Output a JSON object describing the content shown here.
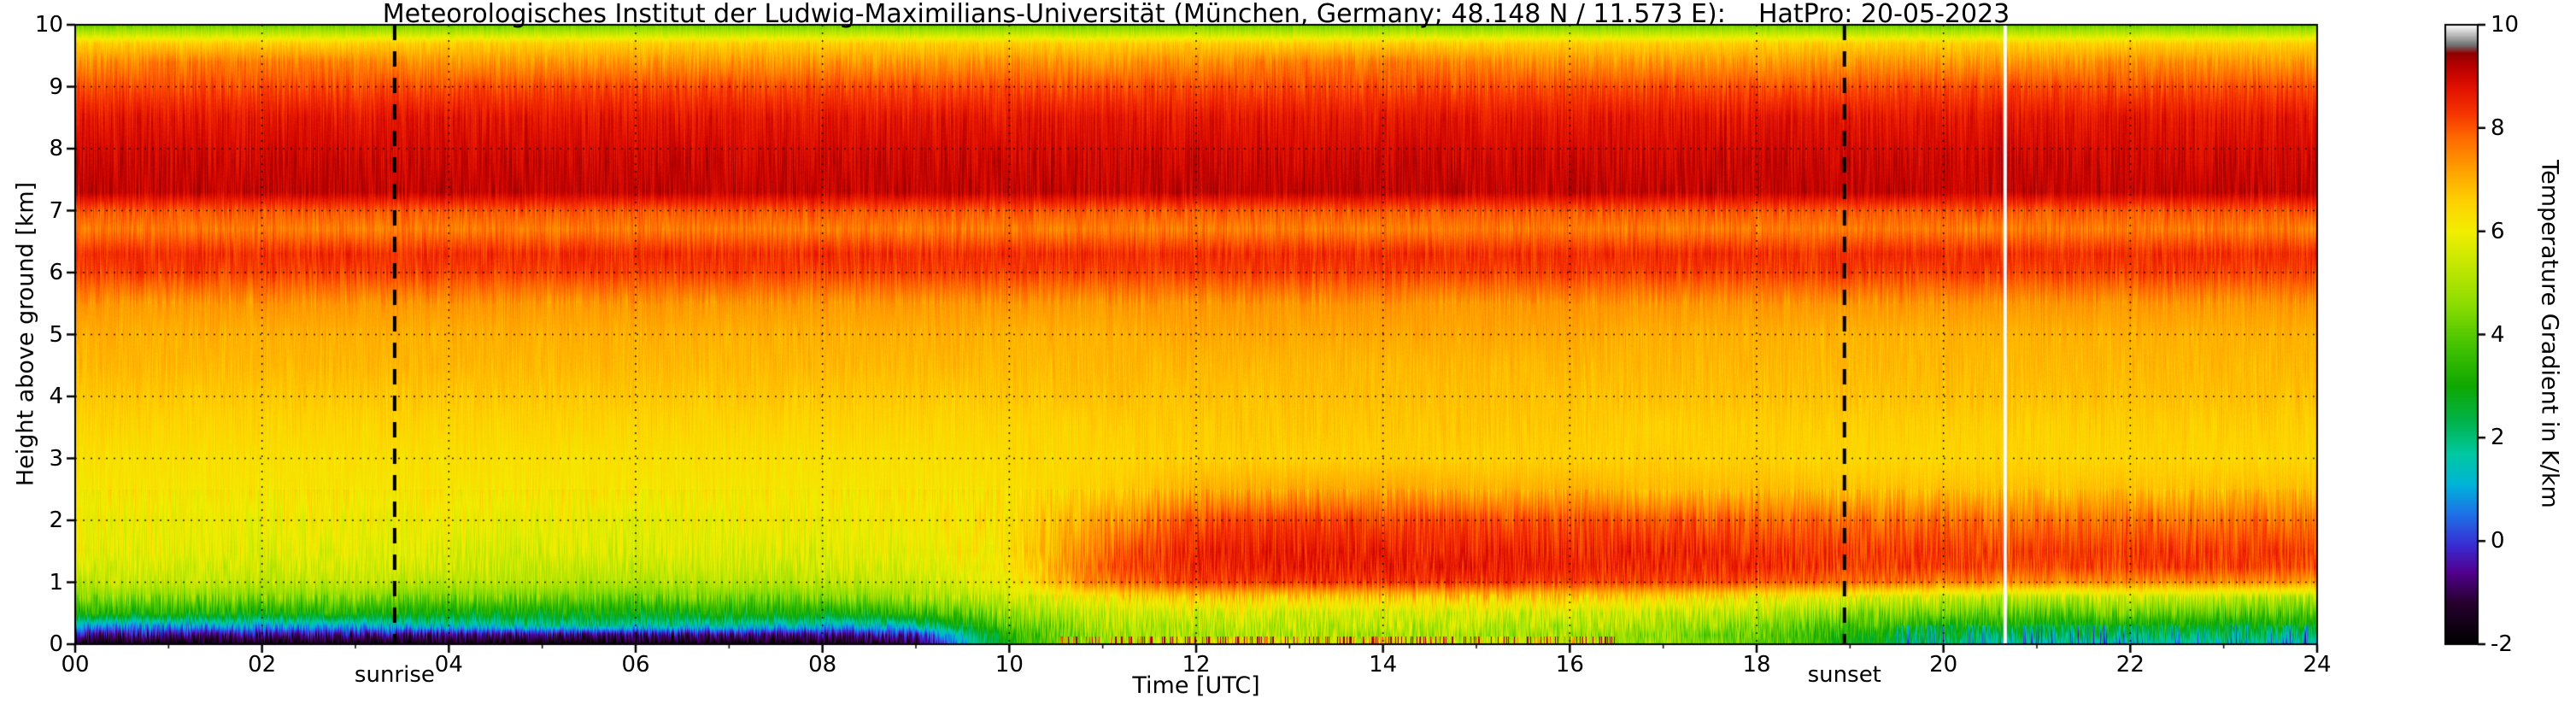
{
  "annotations": {
    "sunrise": {
      "label": "sunrise",
      "time_utc": 3.42
    },
    "sunset": {
      "label": "sunset",
      "time_utc": 18.94
    },
    "data_gap": {
      "time_utc": 20.66
    }
  },
  "chart_data": {
    "type": "heatmap",
    "title": "Meteorologisches Institut der Ludwig-Maximilians-Universität (München, Germany; 48.148 N / 11.573 E):    HatPro: 20-05-2023",
    "xlabel": "Time [UTC]",
    "ylabel": "Height above ground [km]",
    "colorbar_label": "Temperature Gradient in K/km",
    "x_range": [
      0,
      24
    ],
    "y_range": [
      0,
      10
    ],
    "value_range": [
      -2,
      10
    ],
    "grid": true,
    "legend_position": "right-colorbar",
    "x_ticks": [
      0,
      2,
      4,
      6,
      8,
      10,
      12,
      14,
      16,
      18,
      20,
      22,
      24
    ],
    "x_tick_labels": [
      "00",
      "02",
      "04",
      "06",
      "08",
      "10",
      "12",
      "14",
      "16",
      "18",
      "20",
      "22",
      "24"
    ],
    "x_minor_ticks": [
      1,
      3,
      5,
      7,
      9,
      11,
      13,
      15,
      17,
      19,
      21,
      23
    ],
    "y_ticks": [
      0,
      1,
      2,
      3,
      4,
      5,
      6,
      7,
      8,
      9,
      10
    ],
    "colorbar_ticks": [
      -2,
      0,
      2,
      4,
      6,
      8,
      10
    ],
    "colormap": [
      [
        -2.0,
        "#000000"
      ],
      [
        -1.2,
        "#26002e"
      ],
      [
        -0.6,
        "#52008f"
      ],
      [
        -0.1,
        "#3a2bd1"
      ],
      [
        0.5,
        "#1f6fe8"
      ],
      [
        1.1,
        "#00b4d8"
      ],
      [
        1.7,
        "#00c9a0"
      ],
      [
        2.3,
        "#00b34d"
      ],
      [
        3.0,
        "#0fa800"
      ],
      [
        3.8,
        "#45c300"
      ],
      [
        4.6,
        "#8edd00"
      ],
      [
        5.4,
        "#c8e800"
      ],
      [
        6.0,
        "#f2ee00"
      ],
      [
        6.6,
        "#ffd000"
      ],
      [
        7.2,
        "#ffa000"
      ],
      [
        7.8,
        "#ff6a00"
      ],
      [
        8.3,
        "#f63300"
      ],
      [
        8.8,
        "#e00f00"
      ],
      [
        9.2,
        "#b80000"
      ],
      [
        9.45,
        "#8f0000"
      ],
      [
        9.6,
        "#6e6e6e"
      ],
      [
        9.8,
        "#b8b8b8"
      ],
      [
        10.0,
        "#ffffff"
      ]
    ],
    "times": [
      0,
      1,
      2,
      3,
      4,
      5,
      6,
      7,
      8,
      9,
      10,
      11,
      12,
      13,
      14,
      15,
      16,
      17,
      18,
      19,
      20,
      21,
      22,
      23,
      24
    ],
    "heights": [
      0,
      0.15,
      0.3,
      0.5,
      0.75,
      1,
      1.25,
      1.5,
      2,
      2.5,
      3,
      3.5,
      4,
      4.5,
      5,
      5.5,
      6,
      6.3,
      6.7,
      7,
      7.3,
      7.8,
      8.5,
      9,
      9.4,
      9.7,
      10
    ],
    "values_note": "Temperature gradient in K/km; rows correspond to heights[], columns to times[]",
    "values": [
      [
        -1.8,
        -1.8,
        -1.8,
        -1.8,
        -1.8,
        -1.8,
        -1.8,
        -1.8,
        -1.8,
        -1.2,
        3.0,
        5.0,
        5.5,
        5.5,
        5.5,
        5.5,
        5.2,
        4.8,
        4.2,
        3.0,
        2.0,
        1.6,
        1.6,
        1.5,
        1.5
      ],
      [
        -0.6,
        -0.6,
        -0.6,
        -0.6,
        -0.7,
        -0.7,
        -0.7,
        -0.7,
        -0.6,
        -0.2,
        3.4,
        4.8,
        5.0,
        5.0,
        5.0,
        5.0,
        4.9,
        4.6,
        4.2,
        3.2,
        2.6,
        2.3,
        2.3,
        2.2,
        2.2
      ],
      [
        1.0,
        1.0,
        1.0,
        1.1,
        1.5,
        1.7,
        1.7,
        1.6,
        1.3,
        1.6,
        4.0,
        5.0,
        5.2,
        5.2,
        5.2,
        5.2,
        5.1,
        5.0,
        4.6,
        3.8,
        3.2,
        3.0,
        3.0,
        3.0,
        3.0
      ],
      [
        3.2,
        3.2,
        3.1,
        3.2,
        3.0,
        2.9,
        2.9,
        3.0,
        3.1,
        3.4,
        4.8,
        5.4,
        5.6,
        5.6,
        5.6,
        5.6,
        5.5,
        5.4,
        5.2,
        4.6,
        4.2,
        4.0,
        4.2,
        4.0,
        4.0
      ],
      [
        4.5,
        4.5,
        4.4,
        4.5,
        4.3,
        4.2,
        4.2,
        4.3,
        4.4,
        4.7,
        5.5,
        6.2,
        6.6,
        6.6,
        6.6,
        6.6,
        6.5,
        6.4,
        6.2,
        5.8,
        5.4,
        5.2,
        5.4,
        5.2,
        5.2
      ],
      [
        5.3,
        5.3,
        5.2,
        5.3,
        5.2,
        5.1,
        5.1,
        5.2,
        5.2,
        5.4,
        6.0,
        7.6,
        8.2,
        8.3,
        8.3,
        8.3,
        8.2,
        8.2,
        8.0,
        7.8,
        7.6,
        7.4,
        7.5,
        7.4,
        7.4
      ],
      [
        5.6,
        5.6,
        5.5,
        5.6,
        5.5,
        5.4,
        5.4,
        5.5,
        5.5,
        5.7,
        6.2,
        7.9,
        8.5,
        8.6,
        8.6,
        8.6,
        8.5,
        8.5,
        8.4,
        8.3,
        8.2,
        8.1,
        8.2,
        8.2,
        8.1
      ],
      [
        5.8,
        5.8,
        5.7,
        5.8,
        5.7,
        5.6,
        5.6,
        5.7,
        5.7,
        5.9,
        6.3,
        7.8,
        8.5,
        8.6,
        8.6,
        8.5,
        8.5,
        8.5,
        8.4,
        8.3,
        8.3,
        8.2,
        8.3,
        8.2,
        8.2
      ],
      [
        6.0,
        6.0,
        6.0,
        6.0,
        6.0,
        5.9,
        5.9,
        6.0,
        6.0,
        6.1,
        6.3,
        7.2,
        8.0,
        8.2,
        8.2,
        8.1,
        8.0,
        8.0,
        7.9,
        7.8,
        7.8,
        7.7,
        7.8,
        7.7,
        7.7
      ],
      [
        6.2,
        6.2,
        6.2,
        6.2,
        6.2,
        6.2,
        6.2,
        6.2,
        6.2,
        6.2,
        6.3,
        6.6,
        7.0,
        7.1,
        7.1,
        7.0,
        7.0,
        6.9,
        6.9,
        6.8,
        6.8,
        6.8,
        6.8,
        6.8,
        6.8
      ],
      [
        6.3,
        6.3,
        6.3,
        6.3,
        6.3,
        6.3,
        6.3,
        6.3,
        6.3,
        6.3,
        6.4,
        6.5,
        6.6,
        6.6,
        6.6,
        6.6,
        6.6,
        6.6,
        6.6,
        6.5,
        6.5,
        6.5,
        6.5,
        6.5,
        6.5
      ],
      [
        6.5,
        6.5,
        6.5,
        6.5,
        6.5,
        6.5,
        6.5,
        6.5,
        6.5,
        6.5,
        6.5,
        6.6,
        6.7,
        6.7,
        6.7,
        6.7,
        6.7,
        6.6,
        6.6,
        6.6,
        6.6,
        6.6,
        6.6,
        6.6,
        6.6
      ],
      [
        6.7,
        6.7,
        6.7,
        6.7,
        6.7,
        6.7,
        6.7,
        6.7,
        6.7,
        6.7,
        6.7,
        6.8,
        6.8,
        6.8,
        6.8,
        6.8,
        6.8,
        6.8,
        6.8,
        6.8,
        6.8,
        6.8,
        6.8,
        6.8,
        6.8
      ],
      [
        6.9,
        6.9,
        6.9,
        6.9,
        6.9,
        6.9,
        6.9,
        6.9,
        6.9,
        6.9,
        6.9,
        6.9,
        6.9,
        6.9,
        6.9,
        6.9,
        6.9,
        6.9,
        6.9,
        6.9,
        6.9,
        6.9,
        6.9,
        6.9,
        6.9
      ],
      [
        7.0,
        7.0,
        7.0,
        7.0,
        7.0,
        7.0,
        7.0,
        7.0,
        7.0,
        7.0,
        7.0,
        7.0,
        7.1,
        7.1,
        7.1,
        7.1,
        7.1,
        7.0,
        7.0,
        7.0,
        7.0,
        7.0,
        7.0,
        7.0,
        7.0
      ],
      [
        7.3,
        7.3,
        7.3,
        7.3,
        7.3,
        7.3,
        7.3,
        7.3,
        7.3,
        7.3,
        7.3,
        7.3,
        7.3,
        7.3,
        7.3,
        7.3,
        7.3,
        7.3,
        7.3,
        7.3,
        7.3,
        7.3,
        7.3,
        7.3,
        7.3
      ],
      [
        8.2,
        8.2,
        8.2,
        8.2,
        8.2,
        8.2,
        8.2,
        8.2,
        8.2,
        8.2,
        8.2,
        8.2,
        8.2,
        8.2,
        8.2,
        8.2,
        8.2,
        8.2,
        8.2,
        8.2,
        8.2,
        8.2,
        8.2,
        8.2,
        8.2
      ],
      [
        8.4,
        8.4,
        8.4,
        8.4,
        8.4,
        8.4,
        8.4,
        8.4,
        8.4,
        8.4,
        8.4,
        8.4,
        8.4,
        8.4,
        8.4,
        8.4,
        8.4,
        8.4,
        8.4,
        8.4,
        8.4,
        8.4,
        8.4,
        8.4,
        8.4
      ],
      [
        7.6,
        7.6,
        7.6,
        7.6,
        7.6,
        7.6,
        7.6,
        7.6,
        7.6,
        7.6,
        7.6,
        7.6,
        7.6,
        7.6,
        7.6,
        7.6,
        7.6,
        7.6,
        7.6,
        7.6,
        7.6,
        7.6,
        7.6,
        7.6,
        7.6
      ],
      [
        8.0,
        8.0,
        8.0,
        8.0,
        8.0,
        8.0,
        8.0,
        8.0,
        8.0,
        8.0,
        8.0,
        8.0,
        8.0,
        8.0,
        8.0,
        8.0,
        8.0,
        8.0,
        8.0,
        8.0,
        8.0,
        8.0,
        8.0,
        8.0,
        8.0
      ],
      [
        9.1,
        9.1,
        9.1,
        9.1,
        9.1,
        9.1,
        9.1,
        9.1,
        9.1,
        9.1,
        9.1,
        9.1,
        9.1,
        9.1,
        9.1,
        9.1,
        9.1,
        9.1,
        9.1,
        9.1,
        9.1,
        9.1,
        9.1,
        9.1,
        9.1
      ],
      [
        9.0,
        9.0,
        9.0,
        9.0,
        9.0,
        9.0,
        9.0,
        9.0,
        9.0,
        9.0,
        9.0,
        9.0,
        9.0,
        9.0,
        9.0,
        9.0,
        9.0,
        9.0,
        9.0,
        9.0,
        9.0,
        9.0,
        9.0,
        9.0,
        9.0
      ],
      [
        8.7,
        8.7,
        8.7,
        8.7,
        8.7,
        8.7,
        8.7,
        8.7,
        8.7,
        8.7,
        8.7,
        8.7,
        8.7,
        8.7,
        8.7,
        8.7,
        8.7,
        8.7,
        8.7,
        8.7,
        8.7,
        8.7,
        8.7,
        8.7,
        8.7
      ],
      [
        8.1,
        8.1,
        8.1,
        8.1,
        8.1,
        8.1,
        8.1,
        8.1,
        8.1,
        8.1,
        8.1,
        8.1,
        8.1,
        8.1,
        8.1,
        8.1,
        8.1,
        8.1,
        8.1,
        8.1,
        8.1,
        8.1,
        8.1,
        8.1,
        8.1
      ],
      [
        7.3,
        7.6,
        7.6,
        7.5,
        7.3,
        7.3,
        7.3,
        7.3,
        7.3,
        7.3,
        7.3,
        7.3,
        7.4,
        7.6,
        7.6,
        7.5,
        7.3,
        7.3,
        7.3,
        7.3,
        7.3,
        7.3,
        7.4,
        7.3,
        7.3
      ],
      [
        6.6,
        6.6,
        6.6,
        6.6,
        6.6,
        6.6,
        6.6,
        6.6,
        6.6,
        6.6,
        6.6,
        6.6,
        6.6,
        6.6,
        6.6,
        6.6,
        6.6,
        6.6,
        6.6,
        6.6,
        6.6,
        6.6,
        6.6,
        6.6,
        6.6
      ],
      [
        4.2,
        4.2,
        4.2,
        4.2,
        4.2,
        4.2,
        4.2,
        4.2,
        4.2,
        4.2,
        4.2,
        4.2,
        4.2,
        4.2,
        4.2,
        4.2,
        4.2,
        4.2,
        4.2,
        4.2,
        4.2,
        4.2,
        4.2,
        4.2,
        4.2
      ]
    ]
  }
}
